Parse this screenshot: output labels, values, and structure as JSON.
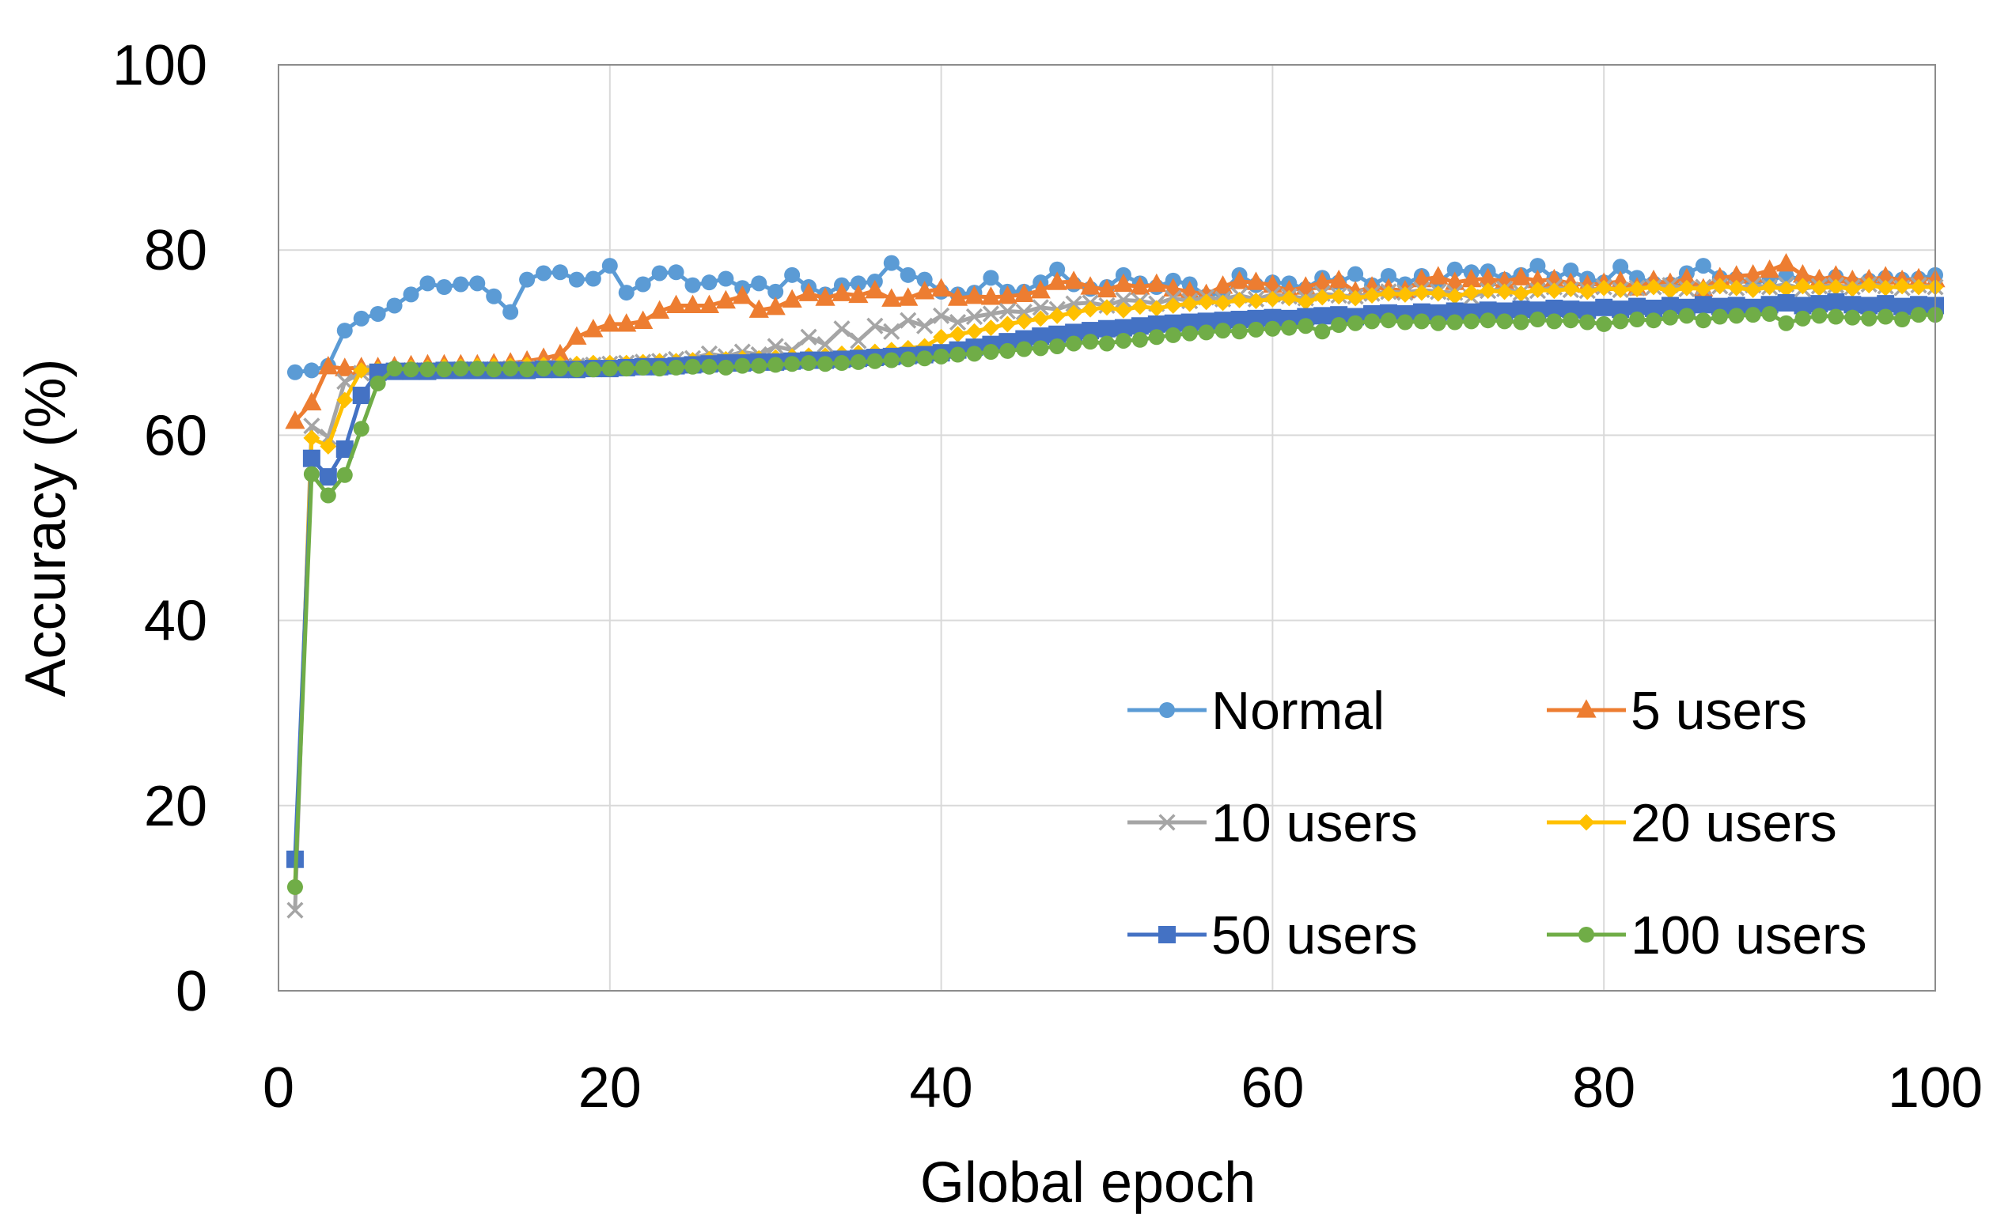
{
  "chart_data": {
    "type": "line",
    "title": "",
    "xlabel": "Global epoch",
    "ylabel": "Accuracy (%)",
    "xlim": [
      0,
      100
    ],
    "ylim": [
      0,
      100
    ],
    "x_ticks": [
      "0",
      "20",
      "40",
      "60",
      "80",
      "100"
    ],
    "y_ticks": [
      "0",
      "20",
      "40",
      "60",
      "80",
      "100"
    ],
    "grid": true,
    "legend_position": "bottom-right",
    "legend_columns": 2,
    "series": [
      {
        "name": "Normal",
        "color": "#5B9BD5",
        "marker": "circle",
        "x": [
          1,
          2,
          3,
          4,
          5,
          6,
          7,
          8,
          9,
          10,
          11,
          12,
          13,
          14,
          15,
          16,
          17,
          18,
          19,
          20,
          21,
          22,
          23,
          24,
          25,
          26,
          27,
          28,
          29,
          30,
          31,
          32,
          33,
          34,
          35,
          36,
          37,
          38,
          39,
          40,
          41,
          42,
          43,
          44,
          45,
          46,
          47,
          48,
          49,
          50,
          51,
          52,
          53,
          54,
          55,
          56,
          57,
          58,
          59,
          60,
          61,
          62,
          63,
          64,
          65,
          66,
          67,
          68,
          69,
          70,
          71,
          72,
          73,
          74,
          75,
          76,
          77,
          78,
          79,
          80,
          81,
          82,
          83,
          84,
          85,
          86,
          87,
          88,
          89,
          90,
          91,
          92,
          93,
          94,
          95,
          96,
          97,
          98,
          99,
          100
        ],
        "y": [
          66.8,
          67,
          67.5,
          71.3,
          72.6,
          73.1,
          74,
          75.2,
          76.4,
          76,
          76.3,
          76.4,
          75,
          73.3,
          76.8,
          77.5,
          77.6,
          76.8,
          76.9,
          78.3,
          75.4,
          76.3,
          77.5,
          77.6,
          76.2,
          76.5,
          76.9,
          75.9,
          76.4,
          75.5,
          77.3,
          76,
          75.2,
          76.2,
          76.4,
          76.6,
          78.6,
          77.3,
          76.8,
          75.5,
          75.2,
          75.4,
          77,
          75.5,
          75.5,
          76.5,
          77.9,
          76.3,
          75.8,
          76,
          77.3,
          76.4,
          76,
          76.7,
          76.3,
          75,
          75.5,
          77.3,
          76.2,
          76.5,
          76.4,
          75.8,
          77,
          76.5,
          77.4,
          76.2,
          77.2,
          76.3,
          77.2,
          76.5,
          77.9,
          77.6,
          77.7,
          76.8,
          77.3,
          78.3,
          76.9,
          77.8,
          76.9,
          76.5,
          78.2,
          77,
          76.4,
          76.3,
          77.5,
          78.3,
          77,
          76.9,
          76.4,
          76.8,
          77.2,
          76.8,
          76.5,
          77.1,
          76.4,
          76.7,
          77,
          76.8,
          76.9,
          77.3
        ]
      },
      {
        "name": "5 users",
        "color": "#ED7D31",
        "marker": "triangle",
        "x": [
          1,
          2,
          3,
          4,
          5,
          6,
          7,
          8,
          9,
          10,
          11,
          12,
          13,
          14,
          15,
          16,
          17,
          18,
          19,
          20,
          21,
          22,
          23,
          24,
          25,
          26,
          27,
          28,
          29,
          30,
          31,
          32,
          33,
          34,
          35,
          36,
          37,
          38,
          39,
          40,
          41,
          42,
          43,
          44,
          45,
          46,
          47,
          48,
          49,
          50,
          51,
          52,
          53,
          54,
          55,
          56,
          57,
          58,
          59,
          60,
          61,
          62,
          63,
          64,
          65,
          66,
          67,
          68,
          69,
          70,
          71,
          72,
          73,
          74,
          75,
          76,
          77,
          78,
          79,
          80,
          81,
          82,
          83,
          84,
          85,
          86,
          87,
          88,
          89,
          90,
          91,
          92,
          93,
          94,
          95,
          96,
          97,
          98,
          99,
          100
        ],
        "y": [
          61.5,
          63.5,
          67.4,
          67.2,
          67.3,
          67.3,
          67.4,
          67.5,
          67.6,
          67.6,
          67.6,
          67.6,
          67.7,
          67.8,
          68,
          68.3,
          68.7,
          70.6,
          71.4,
          72,
          72,
          72.3,
          73.4,
          74,
          74,
          74,
          74.5,
          75,
          73.5,
          73.8,
          74.6,
          75.3,
          74.8,
          75.3,
          75.1,
          75.6,
          74.7,
          74.8,
          75.5,
          75.8,
          74.8,
          75,
          74.9,
          75,
          75.2,
          75.6,
          76.5,
          76.6,
          76,
          75.7,
          76.3,
          76,
          76.3,
          75.8,
          75.5,
          75.2,
          76.1,
          76.6,
          76.5,
          76.2,
          75.6,
          76,
          76.5,
          76.7,
          75.5,
          76,
          75.8,
          75.6,
          76.8,
          77.1,
          76.5,
          76.8,
          76.9,
          76.6,
          77,
          76.7,
          76.8,
          76.4,
          76.2,
          76.4,
          76.6,
          75.9,
          76.7,
          76.4,
          76.9,
          75.8,
          77,
          77.2,
          77.3,
          77.8,
          78.5,
          77.3,
          76.8,
          77.2,
          76.7,
          76.8,
          77.1,
          76.7,
          76.9,
          76.8
        ]
      },
      {
        "name": "10 users",
        "color": "#A5A5A5",
        "marker": "x",
        "x": [
          1,
          2,
          3,
          4,
          5,
          6,
          7,
          8,
          9,
          10,
          11,
          12,
          13,
          14,
          15,
          16,
          17,
          18,
          19,
          20,
          21,
          22,
          23,
          24,
          25,
          26,
          27,
          28,
          29,
          30,
          31,
          32,
          33,
          34,
          35,
          36,
          37,
          38,
          39,
          40,
          41,
          42,
          43,
          44,
          45,
          46,
          47,
          48,
          49,
          50,
          51,
          52,
          53,
          54,
          55,
          56,
          57,
          58,
          59,
          60,
          61,
          62,
          63,
          64,
          65,
          66,
          67,
          68,
          69,
          70,
          71,
          72,
          73,
          74,
          75,
          76,
          77,
          78,
          79,
          80,
          81,
          82,
          83,
          84,
          85,
          86,
          87,
          88,
          89,
          90,
          91,
          92,
          93,
          94,
          95,
          96,
          97,
          98,
          99,
          100
        ],
        "y": [
          8.7,
          61,
          59.8,
          65.8,
          66.7,
          66.8,
          66.9,
          67,
          67,
          67,
          67.1,
          67.1,
          67.1,
          67.2,
          67.2,
          67.3,
          67.3,
          67.5,
          67.6,
          67.7,
          67.8,
          67.9,
          68,
          68.2,
          68.3,
          68.8,
          68.5,
          69,
          68.7,
          69.6,
          69.2,
          70.6,
          69.8,
          71.5,
          70.2,
          71.8,
          71.2,
          72.4,
          71.8,
          72.9,
          72.2,
          72.8,
          73.1,
          73.4,
          73.3,
          73.8,
          73.6,
          74.2,
          74.3,
          74,
          74.6,
          74.5,
          74.2,
          74.8,
          74.5,
          74.9,
          74.7,
          75.1,
          74.7,
          75.2,
          75,
          74.8,
          75.3,
          75.1,
          75,
          75.3,
          75.5,
          75.4,
          75.7,
          75.5,
          75.4,
          74.9,
          75.6,
          75.8,
          75.4,
          75.6,
          76,
          75.7,
          75.6,
          76,
          75.7,
          75.9,
          76,
          76.2,
          75.8,
          76,
          76.1,
          75.9,
          76.2,
          76,
          76.3,
          75.8,
          76.1,
          76.2,
          76,
          76.3,
          76.1,
          75.9,
          76.2,
          76
        ]
      },
      {
        "name": "20 users",
        "color": "#FFC000",
        "marker": "diamond",
        "x": [
          1,
          2,
          3,
          4,
          5,
          6,
          7,
          8,
          9,
          10,
          11,
          12,
          13,
          14,
          15,
          16,
          17,
          18,
          19,
          20,
          21,
          22,
          23,
          24,
          25,
          26,
          27,
          28,
          29,
          30,
          31,
          32,
          33,
          34,
          35,
          36,
          37,
          38,
          39,
          40,
          41,
          42,
          43,
          44,
          45,
          46,
          47,
          48,
          49,
          50,
          51,
          52,
          53,
          54,
          55,
          56,
          57,
          58,
          59,
          60,
          61,
          62,
          63,
          64,
          65,
          66,
          67,
          68,
          69,
          70,
          71,
          72,
          73,
          74,
          75,
          76,
          77,
          78,
          79,
          80,
          81,
          82,
          83,
          84,
          85,
          86,
          87,
          88,
          89,
          90,
          91,
          92,
          93,
          94,
          95,
          96,
          97,
          98,
          99,
          100
        ],
        "y": [
          11.2,
          59.7,
          58.8,
          63.8,
          67,
          67.1,
          67.2,
          67.3,
          67.3,
          67.4,
          67.4,
          67.5,
          67.5,
          67.5,
          67.6,
          67.6,
          67.7,
          67.7,
          67.8,
          67.8,
          67.8,
          67.9,
          68,
          68,
          68.1,
          68.2,
          68.2,
          68.3,
          68.3,
          68.4,
          68.5,
          68.6,
          68.6,
          68.8,
          68.9,
          69,
          69.2,
          69.4,
          69.6,
          70.6,
          70.9,
          71.2,
          71.6,
          72,
          72.3,
          72.6,
          72.9,
          73.2,
          73.6,
          73.8,
          73.5,
          73.9,
          73.7,
          74,
          74.2,
          74.4,
          74.3,
          74.6,
          74.5,
          74.7,
          74.8,
          74.4,
          74.9,
          75,
          74.8,
          75.1,
          75.3,
          75.2,
          75.4,
          75.3,
          75,
          75.4,
          75.6,
          75.5,
          75.3,
          75.7,
          75.6,
          75.8,
          75.5,
          75.9,
          75.7,
          75.8,
          76,
          75.6,
          75.9,
          75.8,
          76.1,
          75.9,
          75.7,
          76,
          75.8,
          76.1,
          75.9,
          76,
          75.8,
          76.2,
          75.9,
          76.1,
          76,
          76
        ]
      },
      {
        "name": "50 users",
        "color": "#4472C4",
        "marker": "square",
        "x": [
          1,
          2,
          3,
          4,
          5,
          6,
          7,
          8,
          9,
          10,
          11,
          12,
          13,
          14,
          15,
          16,
          17,
          18,
          19,
          20,
          21,
          22,
          23,
          24,
          25,
          26,
          27,
          28,
          29,
          30,
          31,
          32,
          33,
          34,
          35,
          36,
          37,
          38,
          39,
          40,
          41,
          42,
          43,
          44,
          45,
          46,
          47,
          48,
          49,
          50,
          51,
          52,
          53,
          54,
          55,
          56,
          57,
          58,
          59,
          60,
          61,
          62,
          63,
          64,
          65,
          66,
          67,
          68,
          69,
          70,
          71,
          72,
          73,
          74,
          75,
          76,
          77,
          78,
          79,
          80,
          81,
          82,
          83,
          84,
          85,
          86,
          87,
          88,
          89,
          90,
          91,
          92,
          93,
          94,
          95,
          96,
          97,
          98,
          99,
          100
        ],
        "y": [
          14.2,
          57.5,
          55.5,
          58.5,
          64.3,
          66.8,
          66.9,
          66.9,
          66.9,
          67,
          67,
          67,
          67,
          67,
          67,
          67.1,
          67.1,
          67.1,
          67.2,
          67.2,
          67.3,
          67.4,
          67.4,
          67.5,
          67.6,
          67.7,
          67.8,
          67.8,
          67.9,
          67.9,
          68,
          68.1,
          68.1,
          68.2,
          68.3,
          68.4,
          68.5,
          68.6,
          68.7,
          68.9,
          69.2,
          69.5,
          69.8,
          70.1,
          70.4,
          70.7,
          70.9,
          71.1,
          71.3,
          71.5,
          71.6,
          71.8,
          72,
          72.1,
          72.2,
          72.3,
          72.4,
          72.5,
          72.6,
          72.7,
          72.6,
          72.8,
          72.9,
          73,
          72.8,
          73.1,
          73.2,
          73.1,
          73.3,
          73.2,
          73.4,
          73.3,
          73.5,
          73.4,
          73.6,
          73.5,
          73.7,
          73.6,
          73.5,
          73.8,
          73.6,
          73.9,
          73.7,
          74,
          73.8,
          74.1,
          73.9,
          74,
          73.8,
          74.1,
          74.3,
          74,
          74.2,
          74.4,
          74.1,
          74,
          74.2,
          73.9,
          74.1,
          74
        ]
      },
      {
        "name": "100 users",
        "color": "#70AD47",
        "marker": "circle",
        "x": [
          1,
          2,
          3,
          4,
          5,
          6,
          7,
          8,
          9,
          10,
          11,
          12,
          13,
          14,
          15,
          16,
          17,
          18,
          19,
          20,
          21,
          22,
          23,
          24,
          25,
          26,
          27,
          28,
          29,
          30,
          31,
          32,
          33,
          34,
          35,
          36,
          37,
          38,
          39,
          40,
          41,
          42,
          43,
          44,
          45,
          46,
          47,
          48,
          49,
          50,
          51,
          52,
          53,
          54,
          55,
          56,
          57,
          58,
          59,
          60,
          61,
          62,
          63,
          64,
          65,
          66,
          67,
          68,
          69,
          70,
          71,
          72,
          73,
          74,
          75,
          76,
          77,
          78,
          79,
          80,
          81,
          82,
          83,
          84,
          85,
          86,
          87,
          88,
          89,
          90,
          91,
          92,
          93,
          94,
          95,
          96,
          97,
          98,
          99,
          100
        ],
        "y": [
          11.2,
          55.8,
          53.5,
          55.7,
          60.7,
          65.6,
          67.2,
          67.1,
          67.1,
          67.1,
          67.2,
          67.2,
          67.1,
          67.2,
          67.1,
          67.2,
          67.2,
          67.1,
          67.1,
          67.2,
          67.2,
          67.3,
          67.2,
          67.3,
          67.4,
          67.4,
          67.3,
          67.5,
          67.5,
          67.6,
          67.7,
          67.8,
          67.7,
          67.8,
          67.9,
          68,
          68.1,
          68.2,
          68.3,
          68.5,
          68.7,
          68.8,
          69,
          69.1,
          69.3,
          69.4,
          69.6,
          69.9,
          70.1,
          69.9,
          70.2,
          70.3,
          70.6,
          70.8,
          71,
          71.1,
          71.3,
          71.2,
          71.4,
          71.5,
          71.6,
          71.8,
          71.2,
          71.9,
          72.1,
          72.3,
          72.4,
          72.2,
          72.3,
          72.1,
          72.2,
          72.3,
          72.4,
          72.3,
          72.2,
          72.5,
          72.3,
          72.4,
          72.2,
          72,
          72.3,
          72.5,
          72.4,
          72.7,
          72.9,
          72.4,
          72.8,
          72.9,
          73,
          73.1,
          72.1,
          72.6,
          72.9,
          72.8,
          72.7,
          72.6,
          72.8,
          72.5,
          73,
          73
        ]
      }
    ]
  }
}
